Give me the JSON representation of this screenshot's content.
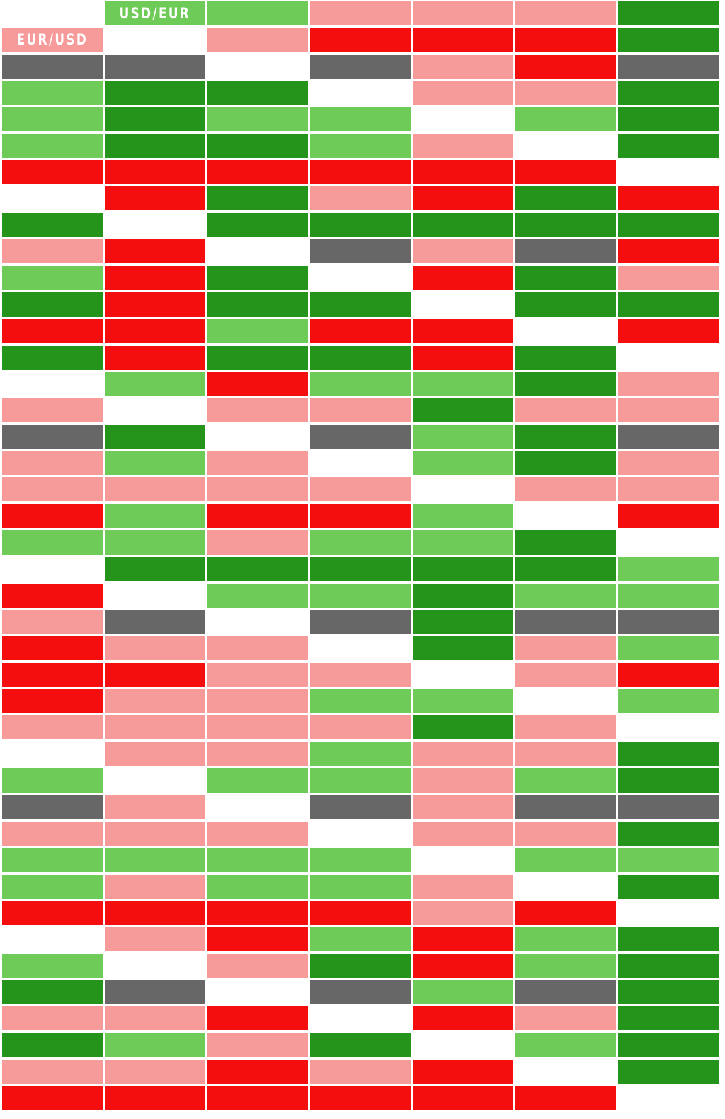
{
  "rows": [
    [
      "#ffffff",
      {
        "color": "#6fcb57",
        "text": "USD/EUR"
      },
      "#6fcb57",
      "#f79a9a",
      "#f79a9a",
      "#f79a9a",
      "#24941a"
    ],
    [
      {
        "color": "#f79a9a",
        "text": "EUR/USD"
      },
      "#ffffff",
      "#f79a9a",
      "#f40e0e",
      "#f40e0e",
      "#f40e0e",
      "#24941a"
    ],
    [
      "#676767",
      "#676767",
      "#ffffff",
      "#676767",
      "#f79a9a",
      "#f40e0e",
      "#676767"
    ],
    [
      "#6fcb57",
      "#24941a",
      "#24941a",
      "#ffffff",
      "#f79a9a",
      "#f79a9a",
      "#24941a"
    ],
    [
      "#6fcb57",
      "#24941a",
      "#6fcb57",
      "#6fcb57",
      "#ffffff",
      "#6fcb57",
      "#24941a"
    ],
    [
      "#6fcb57",
      "#24941a",
      "#24941a",
      "#6fcb57",
      "#f79a9a",
      "#ffffff",
      "#24941a"
    ],
    [
      "#f40e0e",
      "#f40e0e",
      "#f40e0e",
      "#f40e0e",
      "#f40e0e",
      "#f40e0e",
      "#ffffff"
    ],
    [
      "#ffffff",
      "#f40e0e",
      "#24941a",
      "#f79a9a",
      "#f40e0e",
      "#24941a",
      "#f40e0e"
    ],
    [
      "#24941a",
      "#ffffff",
      "#24941a",
      "#24941a",
      "#24941a",
      "#24941a",
      "#24941a"
    ],
    [
      "#f79a9a",
      "#f40e0e",
      "#ffffff",
      "#676767",
      "#f79a9a",
      "#676767",
      "#f40e0e"
    ],
    [
      "#6fcb57",
      "#f40e0e",
      "#24941a",
      "#ffffff",
      "#f40e0e",
      "#24941a",
      "#f79a9a"
    ],
    [
      "#24941a",
      "#f40e0e",
      "#24941a",
      "#24941a",
      "#ffffff",
      "#24941a",
      "#24941a"
    ],
    [
      "#f40e0e",
      "#f40e0e",
      "#6fcb57",
      "#f40e0e",
      "#f40e0e",
      "#ffffff",
      "#f40e0e"
    ],
    [
      "#24941a",
      "#f40e0e",
      "#24941a",
      "#24941a",
      "#f40e0e",
      "#24941a",
      "#ffffff"
    ],
    [
      "#ffffff",
      "#6fcb57",
      "#f40e0e",
      "#6fcb57",
      "#6fcb57",
      "#24941a",
      "#f79a9a"
    ],
    [
      "#f79a9a",
      "#ffffff",
      "#f79a9a",
      "#f79a9a",
      "#24941a",
      "#f79a9a",
      "#f79a9a"
    ],
    [
      "#676767",
      "#24941a",
      "#ffffff",
      "#676767",
      "#6fcb57",
      "#24941a",
      "#676767"
    ],
    [
      "#f79a9a",
      "#6fcb57",
      "#f79a9a",
      "#ffffff",
      "#6fcb57",
      "#24941a",
      "#f79a9a"
    ],
    [
      "#f79a9a",
      "#f79a9a",
      "#f79a9a",
      "#f79a9a",
      "#ffffff",
      "#f79a9a",
      "#f79a9a"
    ],
    [
      "#f40e0e",
      "#6fcb57",
      "#f40e0e",
      "#f40e0e",
      "#6fcb57",
      "#ffffff",
      "#f40e0e"
    ],
    [
      "#6fcb57",
      "#6fcb57",
      "#f79a9a",
      "#6fcb57",
      "#6fcb57",
      "#24941a",
      "#ffffff"
    ],
    [
      "#ffffff",
      "#24941a",
      "#24941a",
      "#24941a",
      "#24941a",
      "#24941a",
      "#6fcb57"
    ],
    [
      "#f40e0e",
      "#ffffff",
      "#6fcb57",
      "#6fcb57",
      "#24941a",
      "#6fcb57",
      "#6fcb57"
    ],
    [
      "#f79a9a",
      "#676767",
      "#ffffff",
      "#676767",
      "#24941a",
      "#676767",
      "#676767"
    ],
    [
      "#f40e0e",
      "#f79a9a",
      "#f79a9a",
      "#ffffff",
      "#24941a",
      "#f79a9a",
      "#6fcb57"
    ],
    [
      "#f40e0e",
      "#f40e0e",
      "#f79a9a",
      "#f79a9a",
      "#ffffff",
      "#f79a9a",
      "#f40e0e"
    ],
    [
      "#f40e0e",
      "#f79a9a",
      "#f79a9a",
      "#6fcb57",
      "#6fcb57",
      "#ffffff",
      "#6fcb57"
    ],
    [
      "#f79a9a",
      "#f79a9a",
      "#f79a9a",
      "#f79a9a",
      "#24941a",
      "#f79a9a",
      "#ffffff"
    ],
    [
      "#ffffff",
      "#f79a9a",
      "#f79a9a",
      "#6fcb57",
      "#f79a9a",
      "#f79a9a",
      "#24941a"
    ],
    [
      "#6fcb57",
      "#ffffff",
      "#6fcb57",
      "#6fcb57",
      "#f79a9a",
      "#6fcb57",
      "#24941a"
    ],
    [
      "#676767",
      "#f79a9a",
      "#ffffff",
      "#676767",
      "#f79a9a",
      "#676767",
      "#676767"
    ],
    [
      "#f79a9a",
      "#f79a9a",
      "#f79a9a",
      "#ffffff",
      "#f79a9a",
      "#f79a9a",
      "#24941a"
    ],
    [
      "#6fcb57",
      "#6fcb57",
      "#6fcb57",
      "#6fcb57",
      "#ffffff",
      "#6fcb57",
      "#6fcb57"
    ],
    [
      "#6fcb57",
      "#f79a9a",
      "#6fcb57",
      "#6fcb57",
      "#f79a9a",
      "#ffffff",
      "#24941a"
    ],
    [
      "#f40e0e",
      "#f40e0e",
      "#f40e0e",
      "#f40e0e",
      "#f79a9a",
      "#f40e0e",
      "#ffffff"
    ],
    [
      "#ffffff",
      "#f79a9a",
      "#f40e0e",
      "#6fcb57",
      "#f40e0e",
      "#6fcb57",
      "#24941a"
    ],
    [
      "#6fcb57",
      "#ffffff",
      "#f79a9a",
      "#24941a",
      "#f40e0e",
      "#6fcb57",
      "#24941a"
    ],
    [
      "#24941a",
      "#676767",
      "#ffffff",
      "#676767",
      "#6fcb57",
      "#676767",
      "#24941a"
    ],
    [
      "#f79a9a",
      "#f79a9a",
      "#f40e0e",
      "#ffffff",
      "#f40e0e",
      "#f79a9a",
      "#24941a"
    ],
    [
      "#24941a",
      "#6fcb57",
      "#f79a9a",
      "#24941a",
      "#ffffff",
      "#6fcb57",
      "#24941a"
    ],
    [
      "#f79a9a",
      "#f79a9a",
      "#f40e0e",
      "#f79a9a",
      "#f40e0e",
      "#ffffff",
      "#24941a"
    ],
    [
      "#f40e0e",
      "#f40e0e",
      "#f40e0e",
      "#f40e0e",
      "#f40e0e",
      "#f40e0e",
      "#ffffff"
    ]
  ]
}
